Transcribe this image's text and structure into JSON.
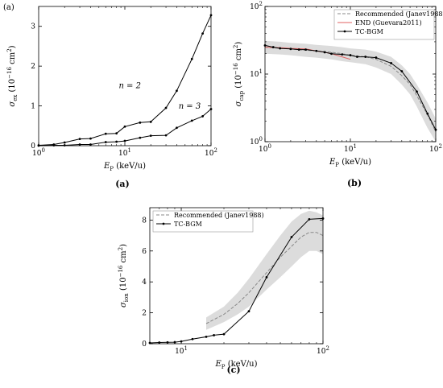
{
  "figure": {
    "corner_label": "(a)",
    "captions": [
      "(a)",
      "(b)",
      "(c)"
    ]
  },
  "chart_data": [
    {
      "id": "a",
      "type": "line",
      "xscale": "log",
      "xlim": [
        1,
        100
      ],
      "ylim": [
        0,
        3.5
      ],
      "xticks": [
        {
          "v": 1,
          "b": "10",
          "e": "0"
        },
        {
          "v": 10,
          "b": "10",
          "e": "1"
        },
        {
          "v": 100,
          "b": "10",
          "e": "2"
        }
      ],
      "yticks": [
        0,
        1,
        2,
        3
      ],
      "xlabel": {
        "main": "E",
        "sub": "P",
        "unit": " (keV/u)"
      },
      "ylabel": {
        "main": "σ",
        "sub": "ex",
        "unit": " (10",
        "sup": "−16",
        "unit2": " cm",
        "sup2": "2",
        "close": ")"
      },
      "series": [
        {
          "name": "n = 2",
          "x": [
            1,
            1.5,
            2,
            3,
            4,
            6,
            8,
            10,
            15,
            20,
            30,
            40,
            60,
            80,
            100
          ],
          "y": [
            0.01,
            0.03,
            0.08,
            0.17,
            0.18,
            0.3,
            0.31,
            0.48,
            0.58,
            0.6,
            0.95,
            1.38,
            2.18,
            2.82,
            3.28
          ]
        },
        {
          "name": "n = 3",
          "x": [
            1,
            1.5,
            2,
            3,
            4,
            6,
            8,
            10,
            15,
            20,
            30,
            40,
            60,
            80,
            100
          ],
          "y": [
            0.0,
            0.01,
            0.01,
            0.03,
            0.03,
            0.09,
            0.1,
            0.12,
            0.2,
            0.25,
            0.26,
            0.45,
            0.63,
            0.74,
            0.92
          ]
        }
      ],
      "annotations": [
        {
          "text": "n = 2",
          "x": 8.5,
          "y": 1.45
        },
        {
          "text": "n = 3",
          "x": 42,
          "y": 0.93
        }
      ]
    },
    {
      "id": "b",
      "type": "line",
      "xscale": "log",
      "yscale": "log",
      "xlim": [
        1,
        100
      ],
      "ylim": [
        1,
        100
      ],
      "xticks": [
        {
          "v": 1,
          "b": "10",
          "e": "0"
        },
        {
          "v": 10,
          "b": "10",
          "e": "1"
        },
        {
          "v": 100,
          "b": "10",
          "e": "2"
        }
      ],
      "yticks": [
        {
          "v": 1,
          "b": "10",
          "e": "0"
        },
        {
          "v": 10,
          "b": "10",
          "e": "1"
        },
        {
          "v": 100,
          "b": "10",
          "e": "2"
        }
      ],
      "xlabel": {
        "main": "E",
        "sub": "P",
        "unit": " (keV/u)"
      },
      "ylabel": {
        "main": "σ",
        "sub": "cap",
        "unit": " (10",
        "sup": "−16",
        "unit2": " cm",
        "sup2": "2",
        "close": ")"
      },
      "legend": {
        "position": "top-right",
        "entries": [
          "Recommended (Janev1988)",
          "END (Guevara2011)",
          "TC-BGM"
        ]
      },
      "colors": {
        "recommended": "#888888",
        "end": "#e06060",
        "tcbgm": "#000000",
        "band": "#dcdcdc"
      },
      "recommended": {
        "x": [
          1,
          1.5,
          2,
          3,
          4,
          6,
          8,
          10,
          15,
          20,
          30,
          40,
          50,
          60,
          80,
          100
        ],
        "y": [
          25,
          24,
          23.5,
          22.5,
          22,
          21,
          20,
          19,
          18,
          16.5,
          13,
          9.5,
          7,
          4.8,
          2.5,
          1.4
        ]
      },
      "band": {
        "x": [
          1,
          1.5,
          2,
          3,
          4,
          6,
          8,
          10,
          15,
          20,
          30,
          40,
          50,
          60,
          80,
          100
        ],
        "upper": [
          31,
          30,
          29,
          28,
          27,
          26,
          25,
          24,
          23,
          21.5,
          18,
          13.5,
          10,
          7,
          3.8,
          2.2
        ],
        "lower": [
          20,
          19.5,
          19,
          18,
          17.5,
          16.5,
          15.5,
          15,
          14,
          12.5,
          10,
          7,
          5,
          3.3,
          1.6,
          1.0
        ]
      },
      "end": {
        "x": [
          1,
          1.5,
          2,
          3,
          4,
          5,
          6,
          8,
          10
        ],
        "y": [
          25,
          24.5,
          24,
          23.5,
          22,
          21,
          20,
          18,
          16.5
        ]
      },
      "tcbgm": {
        "x": [
          1,
          1.25,
          1.5,
          2,
          2.5,
          3,
          4,
          5,
          6,
          8,
          10,
          12,
          15,
          20,
          30,
          40,
          60,
          80,
          100
        ],
        "y": [
          26.5,
          25,
          24,
          23.5,
          23,
          23,
          22,
          21,
          20,
          19.5,
          19,
          18,
          18,
          17.5,
          14.5,
          11,
          5.5,
          2.6,
          1.5
        ]
      }
    },
    {
      "id": "c",
      "type": "line",
      "xscale": "log",
      "xlim": [
        6,
        100
      ],
      "ylim": [
        0,
        8.8
      ],
      "xticks": [
        {
          "v": 10,
          "b": "10",
          "e": "1"
        },
        {
          "v": 100,
          "b": "10",
          "e": "2"
        }
      ],
      "yticks": [
        0,
        2,
        4,
        6,
        8
      ],
      "xlabel": {
        "main": "E",
        "sub": "P",
        "unit": " (keV/u)"
      },
      "ylabel": {
        "main": "σ",
        "sub": "ion",
        "unit": " (10",
        "sup": "−16",
        "unit2": " cm",
        "sup2": "2",
        "close": ")"
      },
      "legend": {
        "position": "top-left",
        "entries": [
          "Recommended (Janev1988)",
          "TC-BGM"
        ]
      },
      "colors": {
        "recommended": "#888888",
        "tcbgm": "#000000",
        "band": "#dcdcdc"
      },
      "recommended": {
        "x": [
          15,
          20,
          25,
          30,
          40,
          50,
          60,
          70,
          80,
          90,
          100
        ],
        "y": [
          1.3,
          1.9,
          2.6,
          3.3,
          4.6,
          5.6,
          6.3,
          6.9,
          7.2,
          7.2,
          7.0
        ]
      },
      "band": {
        "x": [
          15,
          20,
          25,
          30,
          40,
          50,
          60,
          70,
          80,
          90,
          100
        ],
        "upper": [
          1.7,
          2.4,
          3.3,
          4.2,
          5.8,
          7.0,
          7.9,
          8.4,
          8.6,
          8.5,
          8.3
        ],
        "lower": [
          0.9,
          1.4,
          1.9,
          2.4,
          3.5,
          4.3,
          5.0,
          5.6,
          6.0,
          6.0,
          5.8
        ]
      },
      "tcbgm": {
        "x": [
          6,
          7,
          8,
          9,
          10,
          12,
          15,
          17,
          20,
          30,
          40,
          60,
          80,
          100
        ],
        "y": [
          0.05,
          0.08,
          0.09,
          0.1,
          0.15,
          0.3,
          0.45,
          0.55,
          0.62,
          2.1,
          4.3,
          6.9,
          8.05,
          8.1
        ]
      }
    }
  ]
}
